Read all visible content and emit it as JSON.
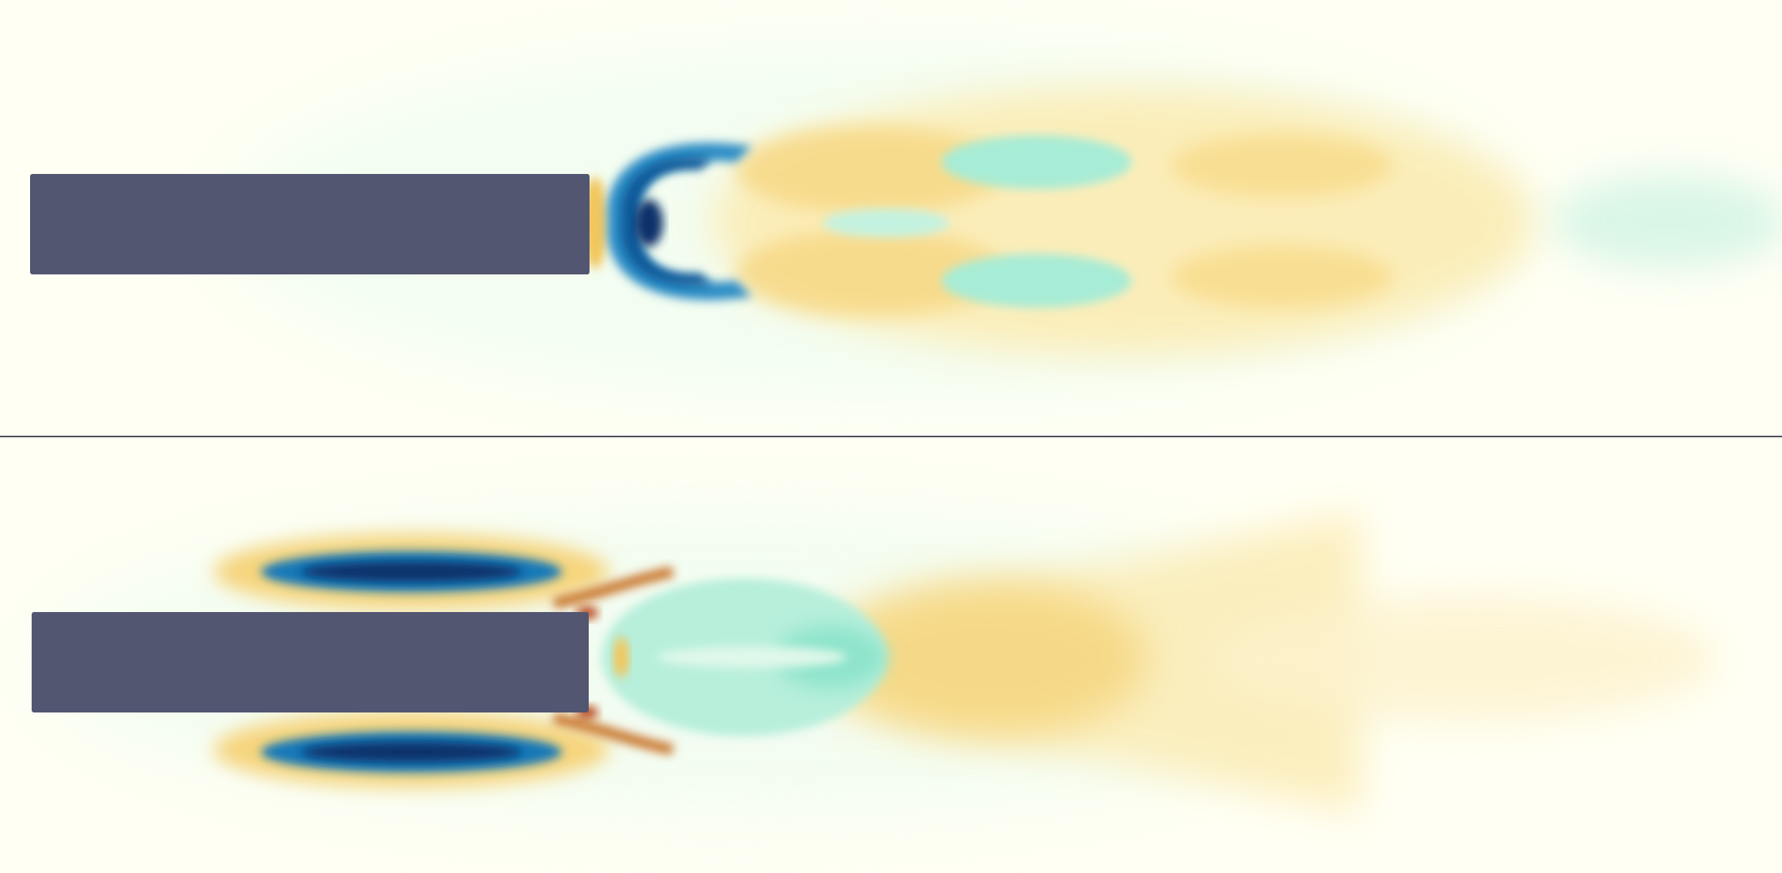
{
  "figure": {
    "panel_count": 2,
    "colors": {
      "background": "#fffff4",
      "body": "#525670",
      "divider": "#50505a",
      "negative_strong": "#08306b",
      "negative_mid": "#1379b8",
      "negative_weak": "#9fe6d2",
      "positive_weak": "#fbe7a4",
      "positive_mid": "#f2c65c",
      "positive_strong": "#b8410e"
    }
  }
}
